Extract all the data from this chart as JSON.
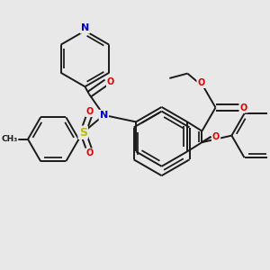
{
  "bg_color": "#e8e8e8",
  "bond_color": "#1a1a1a",
  "bond_width": 1.4,
  "dbo": 0.012,
  "atom_colors": {
    "N": "#0000cc",
    "O": "#dd0000",
    "S": "#bbbb00",
    "C": "#1a1a1a"
  },
  "afs": 7.0
}
